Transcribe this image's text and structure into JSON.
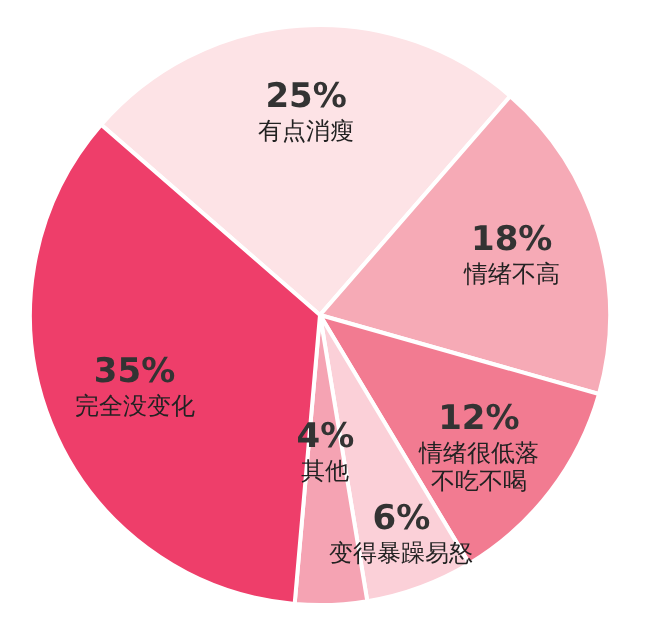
{
  "chart_data": {
    "type": "pie",
    "categories": [
      "有点消瘦",
      "情绪不高",
      "情绪很低落不吃不喝",
      "变得暴躁易怒",
      "其他",
      "完全没变化"
    ],
    "values": [
      25,
      18,
      12,
      6,
      4,
      35
    ],
    "value_labels": [
      "25%",
      "18%",
      "12%",
      "6%",
      "4%",
      "35%"
    ],
    "colors": [
      "#fde3e6",
      "#f6aab6",
      "#f27b91",
      "#fbd0d8",
      "#f5a3b3",
      "#ee3e6a"
    ],
    "legend": false
  }
}
